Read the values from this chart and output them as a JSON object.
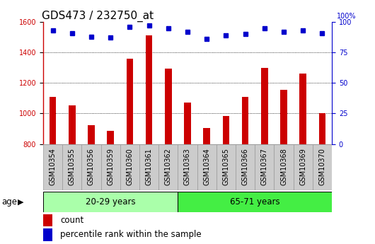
{
  "title": "GDS473 / 232750_at",
  "categories": [
    "GSM10354",
    "GSM10355",
    "GSM10356",
    "GSM10359",
    "GSM10360",
    "GSM10361",
    "GSM10362",
    "GSM10363",
    "GSM10364",
    "GSM10365",
    "GSM10366",
    "GSM10367",
    "GSM10368",
    "GSM10369",
    "GSM10370"
  ],
  "counts": [
    1110,
    1055,
    925,
    885,
    1360,
    1510,
    1295,
    1070,
    905,
    985,
    1110,
    1300,
    1155,
    1260,
    1000
  ],
  "percentile_ranks": [
    93,
    91,
    88,
    87,
    96,
    97,
    95,
    92,
    86,
    89,
    90,
    95,
    92,
    93,
    91
  ],
  "bar_color": "#cc0000",
  "dot_color": "#0000cc",
  "ylim_left": [
    800,
    1600
  ],
  "ylim_right": [
    0,
    100
  ],
  "yticks_left": [
    800,
    1000,
    1200,
    1400,
    1600
  ],
  "yticks_right": [
    0,
    25,
    50,
    75,
    100
  ],
  "group1_label": "20-29 years",
  "group2_label": "65-71 years",
  "group1_count": 7,
  "group2_count": 8,
  "age_label": "age",
  "legend_count": "count",
  "legend_pct": "percentile rank within the sample",
  "bg_plot": "#ffffff",
  "bg_xtick": "#cccccc",
  "color_group1": "#aaffaa",
  "color_group2": "#44ee44",
  "grid_color": "#000000",
  "title_fontsize": 11,
  "tick_fontsize": 7,
  "label_fontsize": 8.5,
  "bar_width": 0.35
}
